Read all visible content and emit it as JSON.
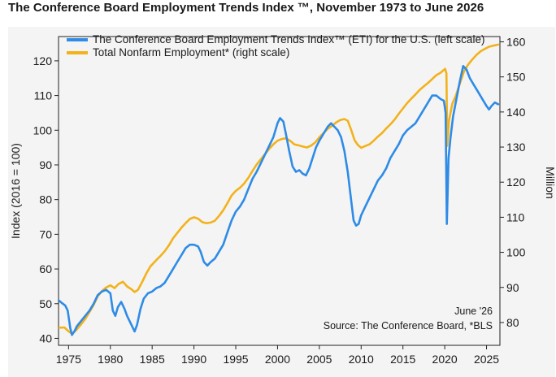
{
  "title": "The Conference Board Employment Trends Index ™, November 1973 to June 2026",
  "chart_data": {
    "type": "line",
    "title": "The Conference Board Employment Trends Index ™, November 1973 to June 2026",
    "xlabel": "",
    "ylabel": "Index (2016 = 100)",
    "y2label": "Million",
    "xlim": [
      1973.8,
      2026.6
    ],
    "ylim": [
      38,
      127
    ],
    "y2lim": [
      73.5,
      161.5
    ],
    "x_ticks": [
      1975,
      1980,
      1985,
      1990,
      1995,
      2000,
      2005,
      2010,
      2015,
      2020,
      2025
    ],
    "y_ticks": [
      40,
      50,
      60,
      70,
      80,
      90,
      100,
      110,
      120
    ],
    "y2_ticks": [
      80,
      90,
      100,
      110,
      120,
      130,
      140,
      150,
      160
    ],
    "grid": false,
    "legend_position": "top",
    "annotations": [
      "June '26",
      "Source: The Conference Board, *BLS"
    ],
    "series": [
      {
        "name": "The Conference Board Employment Trends Index™ (ETI) for the U.S. (left scale)",
        "axis": "left",
        "color": "#2e8be6",
        "points": [
          [
            1973.8,
            51
          ],
          [
            1974.2,
            50.2
          ],
          [
            1974.6,
            49.5
          ],
          [
            1974.9,
            48
          ],
          [
            1975.2,
            43
          ],
          [
            1975.4,
            41
          ],
          [
            1975.7,
            42
          ],
          [
            1976.0,
            43.5
          ],
          [
            1976.5,
            45
          ],
          [
            1977.0,
            46.5
          ],
          [
            1977.5,
            48
          ],
          [
            1978.0,
            50
          ],
          [
            1978.5,
            52.5
          ],
          [
            1979.0,
            53.5
          ],
          [
            1979.5,
            54
          ],
          [
            1980.0,
            53
          ],
          [
            1980.3,
            48
          ],
          [
            1980.6,
            46.5
          ],
          [
            1980.9,
            49
          ],
          [
            1981.3,
            50.5
          ],
          [
            1981.7,
            48.5
          ],
          [
            1982.0,
            46.5
          ],
          [
            1982.5,
            44
          ],
          [
            1982.9,
            42
          ],
          [
            1983.2,
            44
          ],
          [
            1983.6,
            48.5
          ],
          [
            1984.0,
            51.5
          ],
          [
            1984.5,
            53
          ],
          [
            1985.0,
            53.5
          ],
          [
            1985.5,
            54.5
          ],
          [
            1986.0,
            55
          ],
          [
            1986.5,
            56
          ],
          [
            1987.0,
            58
          ],
          [
            1987.5,
            60
          ],
          [
            1988.0,
            62
          ],
          [
            1988.5,
            64
          ],
          [
            1989.0,
            66
          ],
          [
            1989.5,
            67
          ],
          [
            1990.0,
            67
          ],
          [
            1990.5,
            66.5
          ],
          [
            1990.8,
            65
          ],
          [
            1991.2,
            62
          ],
          [
            1991.6,
            61
          ],
          [
            1992.0,
            62
          ],
          [
            1992.5,
            63
          ],
          [
            1993.0,
            65
          ],
          [
            1993.5,
            67
          ],
          [
            1994.0,
            70.5
          ],
          [
            1994.5,
            74
          ],
          [
            1995.0,
            76.5
          ],
          [
            1995.5,
            78
          ],
          [
            1996.0,
            80
          ],
          [
            1996.5,
            83
          ],
          [
            1997.0,
            86
          ],
          [
            1997.5,
            88
          ],
          [
            1998.0,
            90.5
          ],
          [
            1998.5,
            93
          ],
          [
            1999.0,
            95.5
          ],
          [
            1999.5,
            98
          ],
          [
            2000.0,
            102
          ],
          [
            2000.3,
            103.5
          ],
          [
            2000.7,
            102.5
          ],
          [
            2001.0,
            99
          ],
          [
            2001.4,
            94
          ],
          [
            2001.8,
            89.5
          ],
          [
            2002.2,
            88
          ],
          [
            2002.6,
            88.5
          ],
          [
            2003.0,
            87.5
          ],
          [
            2003.4,
            87
          ],
          [
            2003.8,
            89
          ],
          [
            2004.2,
            92
          ],
          [
            2004.6,
            95
          ],
          [
            2005.0,
            97
          ],
          [
            2005.5,
            99
          ],
          [
            2006.0,
            101
          ],
          [
            2006.4,
            102
          ],
          [
            2006.8,
            101
          ],
          [
            2007.2,
            100
          ],
          [
            2007.6,
            98
          ],
          [
            2008.0,
            94
          ],
          [
            2008.4,
            88
          ],
          [
            2008.8,
            80
          ],
          [
            2009.1,
            74
          ],
          [
            2009.4,
            72.5
          ],
          [
            2009.7,
            73
          ],
          [
            2010.0,
            75.5
          ],
          [
            2010.5,
            78
          ],
          [
            2011.0,
            80.5
          ],
          [
            2011.5,
            83
          ],
          [
            2012.0,
            85.5
          ],
          [
            2012.5,
            87
          ],
          [
            2013.0,
            89
          ],
          [
            2013.5,
            92
          ],
          [
            2014.0,
            94
          ],
          [
            2014.5,
            96
          ],
          [
            2015.0,
            98.5
          ],
          [
            2015.5,
            100
          ],
          [
            2016.0,
            101
          ],
          [
            2016.5,
            102
          ],
          [
            2017.0,
            104
          ],
          [
            2017.5,
            106
          ],
          [
            2018.0,
            108
          ],
          [
            2018.5,
            110
          ],
          [
            2019.0,
            110
          ],
          [
            2019.5,
            109
          ],
          [
            2019.9,
            108.5
          ],
          [
            2020.1,
            105
          ],
          [
            2020.25,
            73
          ],
          [
            2020.45,
            92
          ],
          [
            2020.7,
            98
          ],
          [
            2021.0,
            104
          ],
          [
            2021.4,
            109
          ],
          [
            2021.8,
            114
          ],
          [
            2022.2,
            118.5
          ],
          [
            2022.6,
            117.5
          ],
          [
            2023.0,
            115
          ],
          [
            2023.5,
            113
          ],
          [
            2024.0,
            111
          ],
          [
            2024.5,
            109
          ],
          [
            2025.0,
            107
          ],
          [
            2025.3,
            106
          ],
          [
            2025.6,
            107
          ],
          [
            2026.0,
            108
          ],
          [
            2026.4,
            107.5
          ]
        ]
      },
      {
        "name": "Total Nonfarm Employment* (right scale)",
        "axis": "right",
        "color": "#f2b21b",
        "points": [
          [
            1973.8,
            78.5
          ],
          [
            1974.5,
            78.6
          ],
          [
            1975.0,
            77.5
          ],
          [
            1975.4,
            76.8
          ],
          [
            1975.9,
            77.8
          ],
          [
            1976.5,
            79.5
          ],
          [
            1977.0,
            81
          ],
          [
            1977.5,
            83
          ],
          [
            1978.0,
            85
          ],
          [
            1978.5,
            87.5
          ],
          [
            1979.0,
            89
          ],
          [
            1979.5,
            90
          ],
          [
            1980.0,
            90.6
          ],
          [
            1980.5,
            89.8
          ],
          [
            1981.0,
            91
          ],
          [
            1981.5,
            91.6
          ],
          [
            1982.0,
            90.3
          ],
          [
            1982.5,
            89.5
          ],
          [
            1982.9,
            88.7
          ],
          [
            1983.3,
            89.3
          ],
          [
            1983.8,
            91.5
          ],
          [
            1984.3,
            94
          ],
          [
            1984.8,
            96
          ],
          [
            1985.5,
            97.8
          ],
          [
            1986.0,
            99
          ],
          [
            1986.5,
            100.3
          ],
          [
            1987.0,
            102
          ],
          [
            1987.5,
            104
          ],
          [
            1988.0,
            105.5
          ],
          [
            1988.5,
            107
          ],
          [
            1989.0,
            108.3
          ],
          [
            1989.5,
            109.5
          ],
          [
            1990.0,
            110
          ],
          [
            1990.5,
            109.6
          ],
          [
            1991.0,
            108.6
          ],
          [
            1991.5,
            108.3
          ],
          [
            1992.0,
            108.5
          ],
          [
            1992.5,
            109
          ],
          [
            1993.0,
            110.4
          ],
          [
            1993.5,
            112
          ],
          [
            1994.0,
            114
          ],
          [
            1994.5,
            116.2
          ],
          [
            1995.0,
            117.5
          ],
          [
            1995.5,
            118.4
          ],
          [
            1996.0,
            119.6
          ],
          [
            1996.5,
            121.2
          ],
          [
            1997.0,
            123.2
          ],
          [
            1997.5,
            125
          ],
          [
            1998.0,
            126.5
          ],
          [
            1998.5,
            128
          ],
          [
            1999.0,
            129.5
          ],
          [
            1999.5,
            130.8
          ],
          [
            2000.0,
            131.8
          ],
          [
            2000.5,
            132.3
          ],
          [
            2001.0,
            132.5
          ],
          [
            2001.5,
            131.8
          ],
          [
            2002.0,
            130.8
          ],
          [
            2002.5,
            130.5
          ],
          [
            2003.0,
            130.2
          ],
          [
            2003.5,
            129.9
          ],
          [
            2004.0,
            130.4
          ],
          [
            2004.5,
            131.3
          ],
          [
            2005.0,
            132.8
          ],
          [
            2005.5,
            134
          ],
          [
            2006.0,
            135.2
          ],
          [
            2006.5,
            136
          ],
          [
            2007.0,
            137
          ],
          [
            2007.5,
            137.7
          ],
          [
            2008.0,
            138
          ],
          [
            2008.4,
            137.5
          ],
          [
            2008.8,
            135
          ],
          [
            2009.2,
            132
          ],
          [
            2009.6,
            130.6
          ],
          [
            2010.0,
            129.8
          ],
          [
            2010.5,
            130.3
          ],
          [
            2011.0,
            130.8
          ],
          [
            2011.5,
            131.8
          ],
          [
            2012.0,
            133
          ],
          [
            2012.5,
            134
          ],
          [
            2013.0,
            135.3
          ],
          [
            2013.5,
            136.5
          ],
          [
            2014.0,
            137.8
          ],
          [
            2014.5,
            139.5
          ],
          [
            2015.0,
            141
          ],
          [
            2015.5,
            142.5
          ],
          [
            2016.0,
            143.8
          ],
          [
            2016.5,
            145
          ],
          [
            2017.0,
            146.3
          ],
          [
            2017.5,
            147.3
          ],
          [
            2018.0,
            148.3
          ],
          [
            2018.5,
            149.4
          ],
          [
            2019.0,
            150.5
          ],
          [
            2019.5,
            151.2
          ],
          [
            2020.05,
            152.3
          ],
          [
            2020.2,
            151
          ],
          [
            2020.3,
            130.3
          ],
          [
            2020.5,
            137.5
          ],
          [
            2020.9,
            142.3
          ],
          [
            2021.3,
            144.5
          ],
          [
            2021.8,
            148
          ],
          [
            2022.3,
            151.6
          ],
          [
            2022.8,
            153.5
          ],
          [
            2023.3,
            155
          ],
          [
            2023.8,
            156.3
          ],
          [
            2024.3,
            157.3
          ],
          [
            2024.8,
            158
          ],
          [
            2025.3,
            158.6
          ],
          [
            2025.8,
            158.9
          ],
          [
            2026.4,
            159.2
          ]
        ]
      }
    ]
  }
}
